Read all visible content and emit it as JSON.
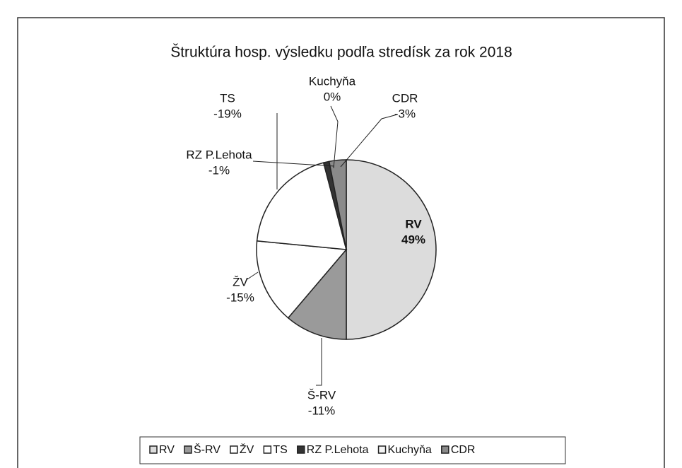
{
  "chart_data": {
    "type": "pie",
    "title": "Štruktúra hosp. výsledku podľa stredísk za rok 2018",
    "categories": [
      "RV",
      "Š-RV",
      "ŽV",
      "TS",
      "RZ P.Lehota",
      "Kuchyňa",
      "CDR"
    ],
    "values": [
      49,
      -11,
      -15,
      -19,
      -1,
      0,
      -3
    ],
    "value_labels": [
      "49%",
      "-11%",
      "-15%",
      "-19%",
      "-1%",
      "0%",
      "-3%"
    ],
    "colors": [
      "#dcdcdc",
      "#9a9a9a",
      "#ffffff",
      "#ffffff",
      "#333333",
      "#f4f4f4",
      "#8a8a8a"
    ],
    "legend": "bottom"
  }
}
